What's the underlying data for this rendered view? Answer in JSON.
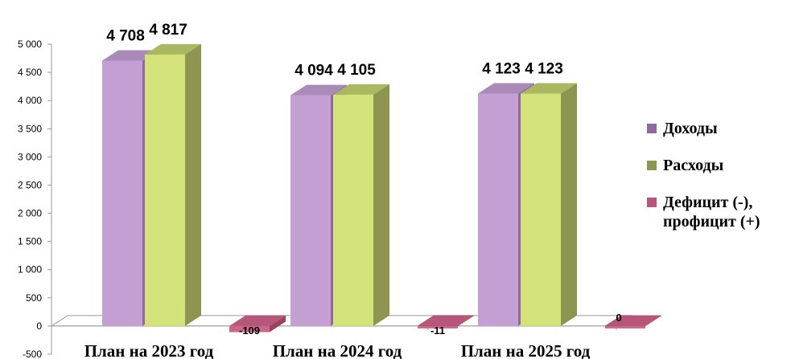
{
  "chart_data": {
    "type": "bar",
    "categories": [
      "План на 2023 год",
      "План на 2024 год",
      "План на 2025 год"
    ],
    "series": [
      {
        "name": "Доходы",
        "values": [
          4708,
          4094,
          4123
        ],
        "labels": [
          "4 708",
          "4 094",
          "4 123"
        ],
        "color": "#c39fd4",
        "side": "#8e6a9c",
        "top": "#a98ab8"
      },
      {
        "name": "Расходы",
        "values": [
          4817,
          4105,
          4123
        ],
        "labels": [
          "4 817",
          "4 105",
          "4 123"
        ],
        "color": "#d4e27a",
        "side": "#8e9550",
        "top": "#aab860"
      },
      {
        "name": "Дефицит (-), профицит (+)",
        "values": [
          -109,
          -11,
          0
        ],
        "labels": [
          "-109",
          "-11",
          "0"
        ],
        "color": "#cc6688",
        "side": "#99445e",
        "top": "#b8557a"
      }
    ],
    "yticks": [
      -500,
      0,
      500,
      1000,
      1500,
      2000,
      2500,
      3000,
      3500,
      4000,
      4500,
      5000
    ],
    "ytick_labels": [
      "-500",
      "0",
      "500",
      "1 000",
      "1 500",
      "2 000",
      "2 500",
      "3 000",
      "3 500",
      "4 000",
      "4 500",
      "5 000"
    ],
    "ylim": [
      -500,
      5000
    ],
    "title": "",
    "xlabel": "",
    "ylabel": "",
    "legend_position": "right"
  },
  "legend": {
    "item0": "Доходы",
    "item1": "Расходы",
    "item2a": "Дефицит (-),",
    "item2b": "профицит (+)"
  }
}
